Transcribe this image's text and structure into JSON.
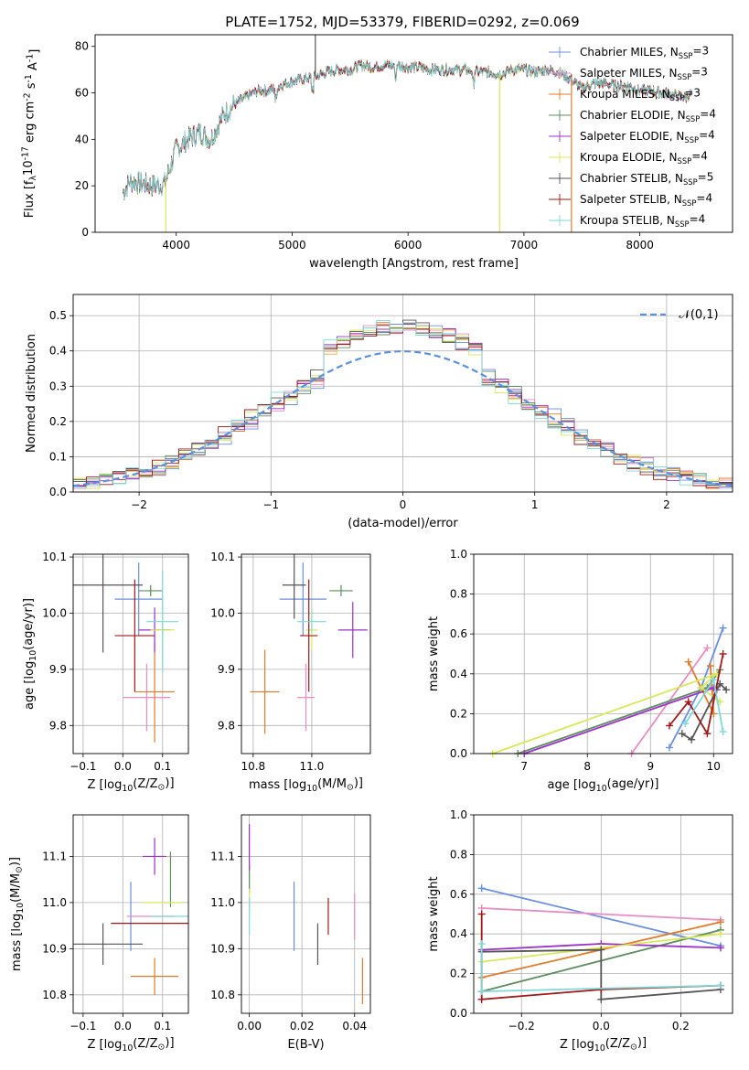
{
  "figure": {
    "title": "PLATE=1752, MJD=53379, FIBERID=0292, z=0.069",
    "models": [
      {
        "name": "Chabrier MILES",
        "nssp": "3",
        "color": "#6a8fe0"
      },
      {
        "name": "Salpeter MILES",
        "nssp": "3",
        "color": "#e88cc4"
      },
      {
        "name": "Kroupa MILES",
        "nssp": "3",
        "color": "#e07b2a"
      },
      {
        "name": "Chabrier ELODIE",
        "nssp": "4",
        "color": "#5e8c5e"
      },
      {
        "name": "Salpeter ELODIE",
        "nssp": "4",
        "color": "#9b30c8"
      },
      {
        "name": "Kroupa ELODIE",
        "nssp": "4",
        "color": "#d8e85a"
      },
      {
        "name": "Chabrier STELIB",
        "nssp": "5",
        "color": "#555555"
      },
      {
        "name": "Salpeter STELIB",
        "nssp": "4",
        "color": "#a01818"
      },
      {
        "name": "Kroupa STELIB",
        "nssp": "4",
        "color": "#7fd8d8"
      }
    ]
  },
  "chart_data": [
    {
      "id": "spectrum",
      "type": "line",
      "xlabel": "wavelength [Angstrom, rest frame]",
      "ylabel": "Flux [f$_\\lambda$10$^{-17}$ erg cm$^{-2}$ s$^{-1}$ A$^{-1}$]",
      "xlim": [
        3300,
        8800
      ],
      "ylim": [
        0,
        85
      ],
      "xticks": [
        4000,
        5000,
        6000,
        7000,
        8000
      ],
      "yticks": [
        0,
        20,
        40,
        60,
        80
      ],
      "continuum": [
        [
          3540,
          17
        ],
        [
          3600,
          22
        ],
        [
          3700,
          21
        ],
        [
          3800,
          20
        ],
        [
          3900,
          21
        ],
        [
          3960,
          30
        ],
        [
          4000,
          36
        ],
        [
          4100,
          40
        ],
        [
          4200,
          43
        ],
        [
          4300,
          40
        ],
        [
          4400,
          50
        ],
        [
          4500,
          55
        ],
        [
          4600,
          58
        ],
        [
          4700,
          61
        ],
        [
          4800,
          61
        ],
        [
          4900,
          63
        ],
        [
          5000,
          65
        ],
        [
          5100,
          66
        ],
        [
          5200,
          67
        ],
        [
          5300,
          69
        ],
        [
          5400,
          70
        ],
        [
          5500,
          70
        ],
        [
          5600,
          72
        ],
        [
          5700,
          71
        ],
        [
          5800,
          72
        ],
        [
          5900,
          72
        ],
        [
          6000,
          71
        ],
        [
          6100,
          71
        ],
        [
          6200,
          70
        ],
        [
          6300,
          70
        ],
        [
          6400,
          70
        ],
        [
          6500,
          70
        ],
        [
          6600,
          69
        ],
        [
          6700,
          69
        ],
        [
          6800,
          68
        ],
        [
          6900,
          70
        ],
        [
          7000,
          70
        ],
        [
          7100,
          69
        ],
        [
          7200,
          70
        ],
        [
          7300,
          69
        ],
        [
          7400,
          66
        ],
        [
          7500,
          62
        ],
        [
          7600,
          64
        ],
        [
          7700,
          64
        ],
        [
          7800,
          63
        ],
        [
          7900,
          63
        ],
        [
          8000,
          61
        ],
        [
          8100,
          61
        ],
        [
          8200,
          60
        ],
        [
          8300,
          59
        ],
        [
          8400,
          58
        ],
        [
          8450,
          60
        ]
      ],
      "spikes": [
        [
          3910,
          "#d8e85a"
        ],
        [
          5200,
          "#555555"
        ],
        [
          6790,
          "#d8e85a"
        ],
        [
          7410,
          "#e07b2a"
        ]
      ],
      "legend_position": "upper right"
    },
    {
      "id": "residuals",
      "type": "histogram",
      "xlabel": "(data-model)/error",
      "ylabel": "Normed distribution",
      "xlim": [
        -2.5,
        2.5
      ],
      "ylim": [
        0,
        0.56
      ],
      "xticks": [
        -2,
        -1,
        0,
        1,
        2
      ],
      "yticks": [
        0.0,
        0.1,
        0.2,
        0.3,
        0.4,
        0.5
      ],
      "reference_curve": "$\\mathcal{N}(0,1)$",
      "legend_position": "upper right"
    },
    {
      "id": "age_vs_Z",
      "type": "errorbar",
      "xlabel": "Z [log$_{10}$(Z/Z$_\\odot$)]",
      "ylabel": "age  [log$_{10}$(age/yr)]",
      "xlim": [
        -0.125,
        0.165
      ],
      "ylim": [
        9.75,
        10.105
      ],
      "xticks": [
        -0.1,
        0.0,
        0.1
      ],
      "yticks": [
        9.8,
        9.9,
        10.0,
        10.1
      ],
      "points": [
        {
          "model": 0,
          "x": 0.04,
          "xerr": 0.06,
          "y": 10.025,
          "yerr": 0.065
        },
        {
          "model": 1,
          "x": 0.06,
          "xerr": 0.06,
          "y": 9.85,
          "yerr": 0.06
        },
        {
          "model": 2,
          "x": 0.08,
          "xerr": 0.05,
          "y": 9.86,
          "yerr": 0.09
        },
        {
          "model": 3,
          "x": 0.07,
          "xerr": 0.03,
          "y": 10.04,
          "yerr": 0.01
        },
        {
          "model": 4,
          "x": 0.08,
          "xerr": 0.04,
          "y": 9.97,
          "yerr": 0.04
        },
        {
          "model": 5,
          "x": 0.1,
          "xerr": 0.03,
          "y": 9.97,
          "yerr": 0.06
        },
        {
          "model": 6,
          "x": -0.05,
          "xerr": 0.1,
          "y": 10.05,
          "yerr": 0.12
        },
        {
          "model": 7,
          "x": 0.03,
          "xerr": 0.05,
          "y": 9.96,
          "yerr": 0.1
        },
        {
          "model": 8,
          "x": 0.1,
          "xerr": 0.04,
          "y": 9.985,
          "yerr": 0.09
        }
      ]
    },
    {
      "id": "age_vs_mass",
      "type": "errorbar",
      "xlabel": "mass [log$_{10}$(M/M$_\\odot$)]",
      "ylabel": "",
      "xlim": [
        10.76,
        11.2
      ],
      "ylim": [
        9.75,
        10.105
      ],
      "xticks": [
        10.8,
        11.0
      ],
      "yticks": [
        9.8,
        9.9,
        10.0,
        10.1
      ],
      "points": [
        {
          "model": 0,
          "x": 10.97,
          "xerr": 0.08,
          "y": 10.025,
          "yerr": 0.065
        },
        {
          "model": 1,
          "x": 10.98,
          "xerr": 0.03,
          "y": 9.85,
          "yerr": 0.06
        },
        {
          "model": 2,
          "x": 10.84,
          "xerr": 0.05,
          "y": 9.86,
          "yerr": 0.075
        },
        {
          "model": 3,
          "x": 11.1,
          "xerr": 0.04,
          "y": 10.04,
          "yerr": 0.01
        },
        {
          "model": 4,
          "x": 11.14,
          "xerr": 0.05,
          "y": 9.97,
          "yerr": 0.05
        },
        {
          "model": 5,
          "x": 11.0,
          "xerr": 0.02,
          "y": 9.97,
          "yerr": 0.035
        },
        {
          "model": 6,
          "x": 10.94,
          "xerr": 0.04,
          "y": 10.05,
          "yerr": 0.06
        },
        {
          "model": 7,
          "x": 10.99,
          "xerr": 0.03,
          "y": 9.96,
          "yerr": 0.1
        },
        {
          "model": 8,
          "x": 11.0,
          "xerr": 0.05,
          "y": 9.985,
          "yerr": 0.02
        }
      ]
    },
    {
      "id": "weight_vs_age",
      "type": "line",
      "xlabel": "age  [log$_{10}$(age/yr)]",
      "ylabel": "mass weight",
      "xlim": [
        6.2,
        10.3
      ],
      "ylim": [
        0,
        1.0
      ],
      "xticks": [
        7,
        8,
        9,
        10
      ],
      "yticks": [
        0.0,
        0.2,
        0.4,
        0.6,
        0.8,
        1.0
      ],
      "series": [
        {
          "model": 0,
          "points": [
            [
              9.3,
              0.03
            ],
            [
              9.8,
              0.33
            ],
            [
              10.15,
              0.63
            ]
          ]
        },
        {
          "model": 1,
          "points": [
            [
              8.7,
              0.0
            ],
            [
              9.9,
              0.53
            ]
          ]
        },
        {
          "model": 2,
          "points": [
            [
              9.6,
              0.46
            ],
            [
              10.0,
              0.2
            ],
            [
              9.95,
              0.44
            ]
          ]
        },
        {
          "model": 3,
          "points": [
            [
              6.9,
              0.0
            ],
            [
              9.9,
              0.33
            ],
            [
              10.1,
              0.42
            ]
          ]
        },
        {
          "model": 4,
          "points": [
            [
              7.0,
              0.0
            ],
            [
              10.0,
              0.33
            ],
            [
              10.05,
              0.32
            ]
          ]
        },
        {
          "model": 5,
          "points": [
            [
              6.5,
              0.0
            ],
            [
              10.05,
              0.4
            ],
            [
              9.8,
              0.33
            ],
            [
              10.1,
              0.26
            ]
          ]
        },
        {
          "model": 6,
          "points": [
            [
              9.5,
              0.1
            ],
            [
              9.65,
              0.07
            ],
            [
              10.1,
              0.35
            ],
            [
              10.2,
              0.32
            ]
          ]
        },
        {
          "model": 7,
          "points": [
            [
              9.3,
              0.14
            ],
            [
              9.6,
              0.26
            ],
            [
              9.9,
              0.1
            ],
            [
              10.15,
              0.5
            ]
          ]
        },
        {
          "model": 8,
          "points": [
            [
              9.55,
              0.15
            ],
            [
              10.0,
              0.37
            ],
            [
              10.15,
              0.11
            ]
          ]
        }
      ]
    },
    {
      "id": "mass_vs_Z",
      "type": "errorbar",
      "xlabel": "Z [log$_{10}$(Z/Z$_\\odot$)]",
      "ylabel": "mass [log$_{10}$(M/M$_\\odot$)]",
      "xlim": [
        -0.125,
        0.165
      ],
      "ylim": [
        10.76,
        11.19
      ],
      "xticks": [
        -0.1,
        0.0,
        0.1
      ],
      "yticks": [
        10.8,
        10.9,
        11.0,
        11.1
      ],
      "points": [
        {
          "model": 0,
          "x": 0.02,
          "xerr": 0.0,
          "y": 10.97,
          "yerr": 0.075
        },
        {
          "model": 1,
          "x": 0.07,
          "xerr": 0.06,
          "y": 10.97,
          "yerr": 0.0
        },
        {
          "model": 2,
          "x": 0.08,
          "xerr": 0.06,
          "y": 10.84,
          "yerr": 0.04
        },
        {
          "model": 3,
          "x": 0.12,
          "xerr": 0.0,
          "y": 11.05,
          "yerr": 0.06
        },
        {
          "model": 4,
          "x": 0.08,
          "xerr": 0.03,
          "y": 11.1,
          "yerr": 0.04
        },
        {
          "model": 5,
          "x": 0.1,
          "xerr": 0.05,
          "y": 11.0,
          "yerr": 0.0
        },
        {
          "model": 6,
          "x": -0.05,
          "xerr": 0.1,
          "y": 10.91,
          "yerr": 0.045
        },
        {
          "model": 7,
          "x": 0.07,
          "xerr": 0.1,
          "y": 10.955,
          "yerr": 0.0
        },
        {
          "model": 8,
          "x": 0.12,
          "xerr": 0.05,
          "y": 10.97,
          "yerr": 0.0
        }
      ]
    },
    {
      "id": "mass_vs_EBV",
      "type": "errorbar",
      "xlabel": "E(B-V)",
      "ylabel": "",
      "xlim": [
        -0.003,
        0.046
      ],
      "ylim": [
        10.76,
        11.19
      ],
      "xticks": [
        0.0,
        0.02,
        0.04
      ],
      "yticks": [
        10.8,
        10.9,
        11.0,
        11.1
      ],
      "points": [
        {
          "model": 0,
          "x": 0.017,
          "xerr": 0,
          "y": 10.97,
          "yerr": 0.075
        },
        {
          "model": 1,
          "x": 0.04,
          "xerr": 0,
          "y": 10.97,
          "yerr": 0.05
        },
        {
          "model": 2,
          "x": 0.043,
          "xerr": 0,
          "y": 10.83,
          "yerr": 0.05
        },
        {
          "model": 3,
          "x": 0.0,
          "xerr": 0,
          "y": 11.05,
          "yerr": 0.03
        },
        {
          "model": 4,
          "x": 0.0,
          "xerr": 0,
          "y": 11.12,
          "yerr": 0.05
        },
        {
          "model": 5,
          "x": 0.0,
          "xerr": 0,
          "y": 11.0,
          "yerr": 0.03
        },
        {
          "model": 6,
          "x": 0.026,
          "xerr": 0,
          "y": 10.91,
          "yerr": 0.045
        },
        {
          "model": 7,
          "x": 0.03,
          "xerr": 0,
          "y": 10.97,
          "yerr": 0.04
        },
        {
          "model": 8,
          "x": 0.0,
          "xerr": 0,
          "y": 10.97,
          "yerr": 0.04
        }
      ]
    },
    {
      "id": "weight_vs_Z",
      "type": "line",
      "xlabel": "Z [log$_{10}$(Z/Z$_\\odot$)]",
      "ylabel": "mass weight",
      "xlim": [
        -0.32,
        0.33
      ],
      "ylim": [
        0,
        1.0
      ],
      "xticks": [
        -0.2,
        0.0,
        0.2
      ],
      "yticks": [
        0.0,
        0.2,
        0.4,
        0.6,
        0.8,
        1.0
      ],
      "series": [
        {
          "model": 0,
          "points": [
            [
              -0.3,
              0.63
            ],
            [
              0.3,
              0.34
            ]
          ]
        },
        {
          "model": 1,
          "points": [
            [
              -0.3,
              0.53
            ],
            [
              0.3,
              0.47
            ]
          ]
        },
        {
          "model": 2,
          "points": [
            [
              -0.3,
              0.18
            ],
            [
              0.3,
              0.46
            ]
          ]
        },
        {
          "model": 3,
          "points": [
            [
              -0.3,
              0.11
            ],
            [
              0.3,
              0.42
            ]
          ]
        },
        {
          "model": 4,
          "points": [
            [
              -0.3,
              0.32
            ],
            [
              0.0,
              0.35
            ],
            [
              0.3,
              0.33
            ]
          ]
        },
        {
          "model": 5,
          "points": [
            [
              -0.3,
              0.26
            ],
            [
              0.0,
              0.33
            ],
            [
              0.3,
              0.4
            ]
          ]
        },
        {
          "model": 6,
          "points": [
            [
              -0.3,
              0.31
            ],
            [
              0.0,
              0.32
            ],
            [
              0.0,
              0.07
            ],
            [
              0.3,
              0.12
            ]
          ]
        },
        {
          "model": 7,
          "points": [
            [
              -0.3,
              0.5
            ],
            [
              -0.3,
              0.07
            ],
            [
              0.0,
              0.12
            ],
            [
              0.3,
              0.14
            ]
          ]
        },
        {
          "model": 8,
          "points": [
            [
              -0.3,
              0.35
            ],
            [
              -0.3,
              0.11
            ],
            [
              0.3,
              0.14
            ]
          ]
        }
      ]
    }
  ]
}
